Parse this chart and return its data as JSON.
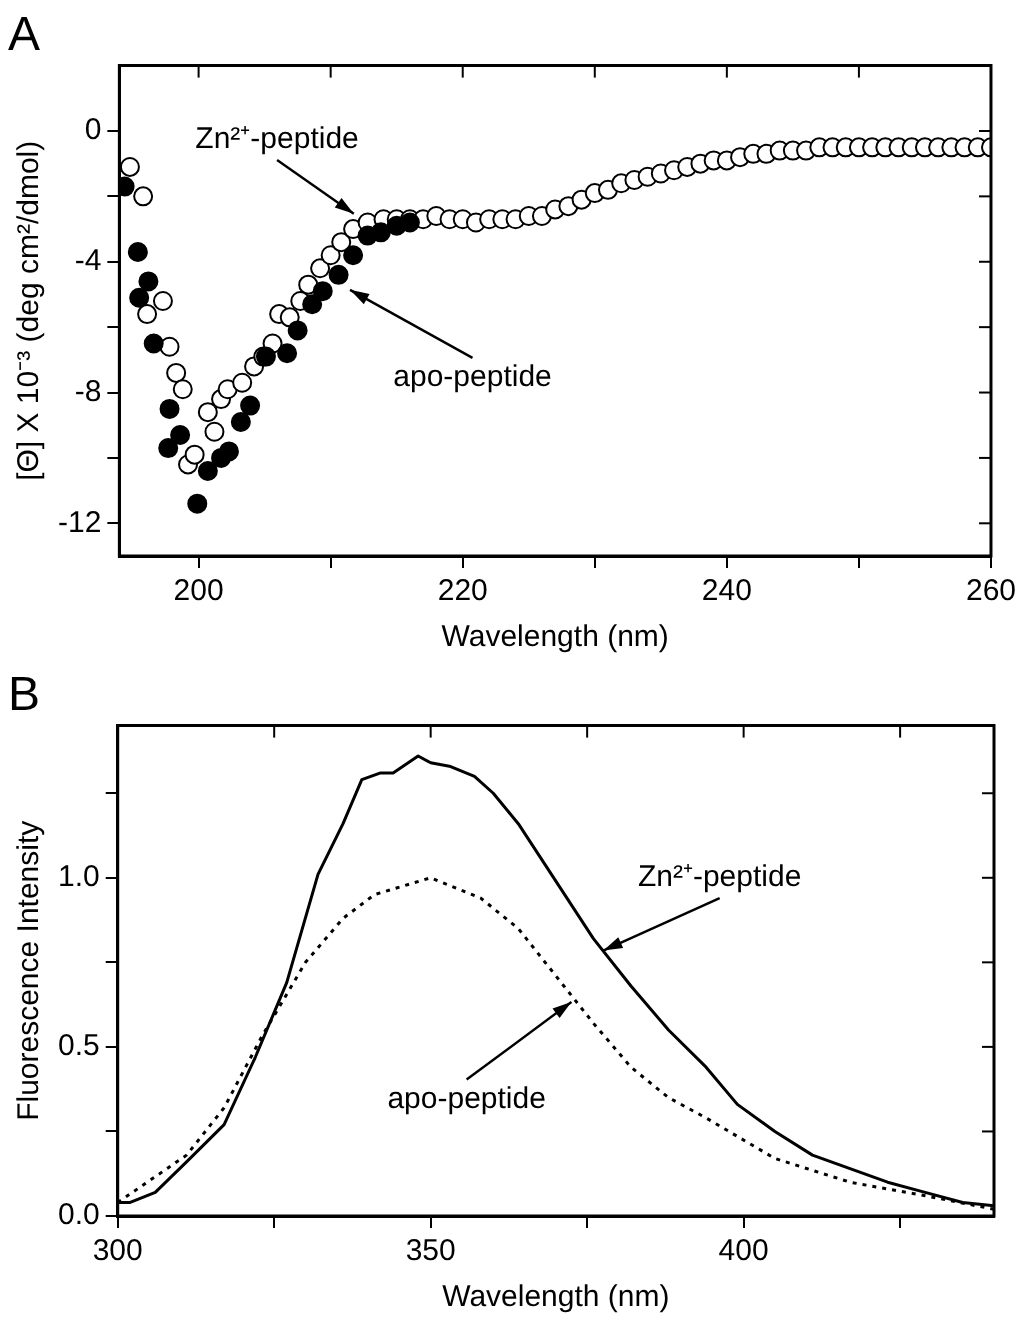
{
  "chart_data": [
    {
      "type": "scatter",
      "title": "A",
      "xlabel": "Wavelength (nm)",
      "ylabel": "[Θ] X 10⁻³ (deg cm²/dmol)",
      "xlim": [
        194,
        260
      ],
      "ylim": [
        -13,
        2
      ],
      "xticks": [
        200,
        {
          "value": 210,
          "label": null
        },
        220,
        {
          "value": 230,
          "label": null
        },
        240,
        {
          "value": 250,
          "label": null
        },
        260
      ],
      "yticks": [
        -12,
        {
          "value": -10,
          "label": null
        },
        -8,
        {
          "value": -6,
          "label": null
        },
        -4,
        {
          "value": -2,
          "label": null
        },
        0
      ],
      "marker": "circle",
      "legend": false,
      "grid": false,
      "series": [
        {
          "color": "#000000",
          "x": [
            194.4,
            195.4,
            195.5,
            196.2,
            196.6,
            197.7,
            197.8,
            198.6,
            199.9,
            200.7,
            201.7,
            202.3,
            203.2,
            203.9,
            205.1,
            206.7,
            207.5,
            208.6,
            209.4,
            210.6,
            211.7,
            212.8,
            213.8,
            215,
            216
          ],
          "values": [
            -1.7,
            -3.7,
            -5.1,
            -4.6,
            -6.5,
            -9.7,
            -8.5,
            -9.3,
            -11.4,
            -10.4,
            -10.0,
            -9.8,
            -8.9,
            -8.4,
            -6.9,
            -6.8,
            -6.1,
            -5.3,
            -4.9,
            -4.4,
            -3.8,
            -3.2,
            -3.1,
            -2.9,
            -2.8
          ]
        },
        {
          "color": "#ffffff",
          "x": [
            194.8,
            195.8,
            196.1,
            197.3,
            197.8,
            198.3,
            198.8,
            199.2,
            199.7,
            200.7,
            201.2,
            201.7,
            202.2,
            203.3,
            204.2,
            204.9,
            205.6,
            206.1,
            206.9,
            207.7,
            208.3,
            209.2,
            210,
            210.8,
            211.7,
            212.8,
            214,
            215,
            216,
            217,
            218,
            219,
            220,
            221,
            222,
            223,
            224,
            225,
            226,
            227,
            228,
            229,
            230,
            231,
            232,
            233,
            234,
            235,
            236,
            237,
            238,
            239,
            240,
            241,
            242,
            243,
            244,
            245,
            246,
            247,
            248,
            249,
            250,
            251,
            252,
            253,
            254,
            255,
            256,
            257,
            258,
            259,
            260
          ],
          "values": [
            -1.1,
            -2.0,
            -5.6,
            -5.2,
            -6.6,
            -7.4,
            -7.9,
            -10.2,
            -9.9,
            -8.6,
            -9.2,
            -8.2,
            -7.9,
            -7.7,
            -7.2,
            -6.9,
            -6.5,
            -5.6,
            -5.7,
            -5.2,
            -4.7,
            -4.2,
            -3.8,
            -3.4,
            -3.0,
            -2.8,
            -2.7,
            -2.7,
            -2.7,
            -2.7,
            -2.6,
            -2.7,
            -2.7,
            -2.8,
            -2.7,
            -2.7,
            -2.7,
            -2.6,
            -2.6,
            -2.4,
            -2.3,
            -2.1,
            -1.9,
            -1.8,
            -1.6,
            -1.5,
            -1.4,
            -1.3,
            -1.2,
            -1.1,
            -1.0,
            -0.9,
            -0.9,
            -0.8,
            -0.7,
            -0.7,
            -0.6,
            -0.6,
            -0.6,
            -0.5,
            -0.5,
            -0.5,
            -0.5,
            -0.5,
            -0.5,
            -0.5,
            -0.5,
            -0.5,
            -0.5,
            -0.5,
            -0.5,
            -0.5,
            -0.5
          ]
        }
      ],
      "annotations": [
        {
          "text": "Zn²⁺-peptide",
          "x": 212,
          "y": -2.6
        },
        {
          "text": "apo-peptide",
          "x": 211.2,
          "y": -4.8
        }
      ]
    },
    {
      "type": "line",
      "title": "B",
      "xlabel": "Wavelength (nm)",
      "ylabel": "Fluorescence Intensity",
      "xlim": [
        300,
        440
      ],
      "ylim": [
        0,
        1.45
      ],
      "xticks": [
        300,
        {
          "value": 325,
          "label": null
        },
        350,
        {
          "value": 375,
          "label": null
        },
        400,
        {
          "value": 425,
          "label": null
        }
      ],
      "yticks": [
        {
          "value": 0,
          "label": "0.0"
        },
        {
          "value": 0.25,
          "label": null
        },
        0.5,
        {
          "value": 0.75,
          "label": null
        },
        {
          "value": 1,
          "label": "1.0"
        },
        {
          "value": 1.25,
          "label": null
        }
      ],
      "marker": "none",
      "legend": false,
      "grid": false,
      "series": [
        {
          "color": "#000000",
          "line_style": "solid",
          "x": [
            300,
            302,
            306,
            311,
            317,
            322,
            327,
            332,
            336,
            339,
            342,
            344,
            348,
            350,
            353,
            357,
            360,
            364,
            370,
            376,
            382,
            388,
            394,
            399,
            405,
            411,
            417,
            423,
            429,
            435,
            440
          ],
          "values": [
            0.04,
            0.04,
            0.07,
            0.16,
            0.27,
            0.47,
            0.69,
            1.01,
            1.16,
            1.29,
            1.31,
            1.31,
            1.36,
            1.34,
            1.33,
            1.3,
            1.25,
            1.16,
            0.99,
            0.82,
            0.68,
            0.55,
            0.44,
            0.33,
            0.25,
            0.18,
            0.14,
            0.1,
            0.07,
            0.04,
            0.03
          ]
        },
        {
          "color": "#000000",
          "line_style": "dotted",
          "x": [
            300,
            311,
            317,
            323,
            330,
            336,
            341,
            350,
            358,
            364,
            370,
            376,
            382,
            388,
            394,
            405,
            417,
            429,
            440
          ],
          "values": [
            0.04,
            0.18,
            0.32,
            0.53,
            0.75,
            0.88,
            0.95,
            1.0,
            0.94,
            0.85,
            0.71,
            0.57,
            0.44,
            0.35,
            0.29,
            0.17,
            0.1,
            0.06,
            0.02
          ]
        }
      ],
      "annotations": [
        {
          "text": "Zn²⁺-peptide",
          "x": 377,
          "y": 0.78
        },
        {
          "text": "apo-peptide",
          "x": 373,
          "y": 0.64
        }
      ]
    }
  ]
}
